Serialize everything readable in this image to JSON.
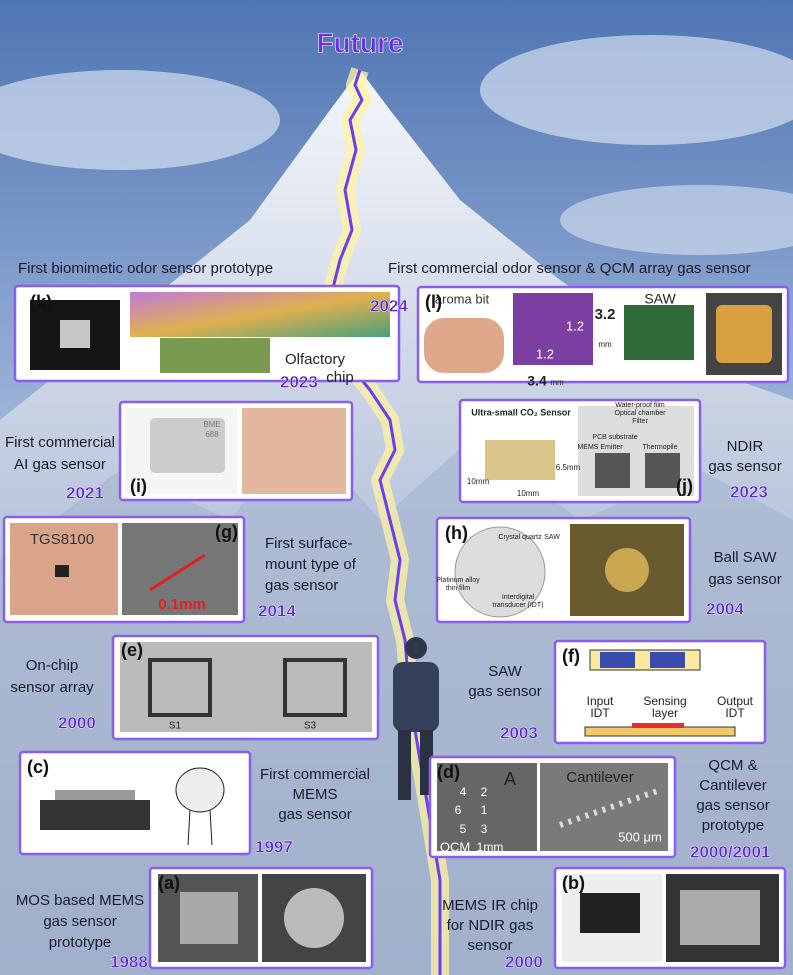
{
  "title": "Future",
  "milestones": [
    {
      "panel": "(a)",
      "year": "1988",
      "caption": [
        "MOS based MEMS",
        "gas sensor",
        "prototype"
      ]
    },
    {
      "panel": "(b)",
      "year": "2000",
      "caption": [
        "MEMS IR chip",
        "for NDIR gas",
        "sensor"
      ]
    },
    {
      "panel": "(c)",
      "year": "1997",
      "caption": [
        "First commercial",
        "MEMS",
        "gas sensor"
      ]
    },
    {
      "panel": "(d)",
      "year": "2000/2001",
      "caption": [
        "QCM &",
        "Cantilever",
        "gas sensor",
        "prototype"
      ],
      "labels": [
        "A",
        "Cantilever",
        "4",
        "2",
        "6",
        "1",
        "5",
        "3",
        "QCM",
        "1mm",
        "500 μm"
      ]
    },
    {
      "panel": "(e)",
      "year": "2000",
      "caption": [
        "On-chip",
        "sensor array"
      ],
      "labels": [
        "S1",
        "S3"
      ]
    },
    {
      "panel": "(f)",
      "year": "2003",
      "caption": [
        "SAW",
        "gas sensor"
      ],
      "labels": [
        "Input",
        "IDT",
        "Sensing",
        "layer",
        "Output",
        "IDT"
      ]
    },
    {
      "panel": "(g)",
      "year": "2014",
      "caption": [
        "First surface-",
        "mount type of",
        "gas sensor"
      ],
      "labels": [
        "TGS8100",
        "0.1mm"
      ]
    },
    {
      "panel": "(h)",
      "year": "2004",
      "caption": [
        "Ball SAW",
        "gas sensor"
      ],
      "labels": [
        "Crystal quartz",
        "SAW",
        "Platinum alloy",
        "thin film",
        "Interdigital",
        "transducer (IDT)"
      ]
    },
    {
      "panel": "(i)",
      "year": "2021",
      "caption": [
        "First commercial",
        "AI gas sensor"
      ],
      "labels": [
        "BME",
        "688"
      ]
    },
    {
      "panel": "(j)",
      "year": "2023",
      "caption": [
        "NDIR",
        "gas sensor"
      ],
      "labels": [
        "Ultra-small CO₂ Sensor",
        "Water-proof film",
        "Optical chamber",
        "Filter",
        "PCB substrate",
        "MEMS Emitter",
        "Thermopile",
        "10mm",
        "10mm",
        "6.5mm"
      ]
    },
    {
      "panel": "(k)",
      "year": "2023",
      "caption": [
        "First biomimetic odor sensor prototype"
      ],
      "labels": [
        "Olfactory",
        "chip"
      ]
    },
    {
      "panel": "(l)",
      "year": "2024",
      "caption": [
        "First commercial odor sensor & QCM array gas sensor"
      ],
      "labels": [
        "aroma bit",
        "1.2",
        "1.2",
        "3.2",
        "mm",
        "3.4",
        "mm",
        "SAW"
      ]
    }
  ]
}
